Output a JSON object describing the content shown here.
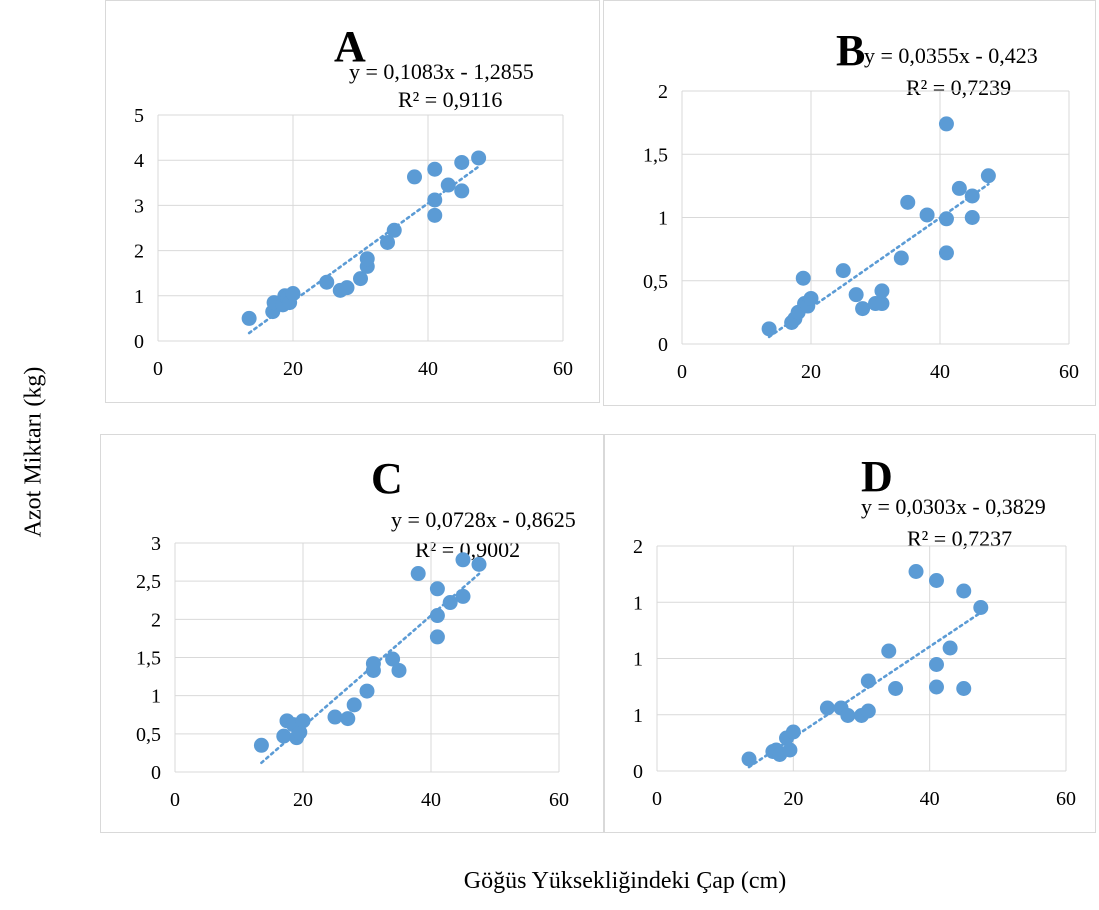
{
  "figure": {
    "ylabel": "Azot Miktarı (kg)",
    "xlabel": "Göğüs Yüksekliğindeki Çap (cm)"
  },
  "colors": {
    "point": "#5b9bd5",
    "trend": "#5b9bd5",
    "grid": "#d9d9d9"
  },
  "chart_data": [
    {
      "type": "scatter",
      "panel_label": "A",
      "equation": "y = 0,1083x - 1,2855",
      "r2": "R² = 0,9116",
      "xlim": [
        0,
        60
      ],
      "ylim": [
        0,
        5
      ],
      "x_ticks": [
        "0",
        "20",
        "40",
        "60"
      ],
      "y_ticks": [
        "0",
        "1",
        "2",
        "3",
        "4",
        "5"
      ],
      "trendline": {
        "slope": 0.1083,
        "intercept": -1.2855,
        "x_range": [
          13.5,
          47.5
        ]
      },
      "points": [
        [
          13.5,
          0.5
        ],
        [
          17,
          0.65
        ],
        [
          17.2,
          0.85
        ],
        [
          18.5,
          0.8
        ],
        [
          18.8,
          1.0
        ],
        [
          19.2,
          0.95
        ],
        [
          19.5,
          0.85
        ],
        [
          20,
          1.05
        ],
        [
          25,
          1.3
        ],
        [
          27,
          1.12
        ],
        [
          28,
          1.18
        ],
        [
          30,
          1.38
        ],
        [
          31,
          1.65
        ],
        [
          31,
          1.82
        ],
        [
          34,
          2.18
        ],
        [
          35,
          2.45
        ],
        [
          38,
          3.63
        ],
        [
          41,
          3.8
        ],
        [
          41,
          3.12
        ],
        [
          41,
          2.78
        ],
        [
          43,
          3.45
        ],
        [
          45,
          3.95
        ],
        [
          45,
          3.32
        ],
        [
          47.5,
          4.05
        ]
      ]
    },
    {
      "type": "scatter",
      "panel_label": "B",
      "equation": "y = 0,0355x - 0,423",
      "r2": "R² = 0,7239",
      "xlim": [
        0,
        60
      ],
      "ylim": [
        0,
        2
      ],
      "x_ticks": [
        "0",
        "20",
        "40",
        "60"
      ],
      "y_ticks": [
        "0",
        "0,5",
        "1",
        "1,5",
        "2"
      ],
      "trendline": {
        "slope": 0.0355,
        "intercept": -0.423,
        "x_range": [
          13.5,
          47.5
        ]
      },
      "points": [
        [
          13.5,
          0.12
        ],
        [
          17,
          0.17
        ],
        [
          17.5,
          0.2
        ],
        [
          18,
          0.25
        ],
        [
          18.8,
          0.52
        ],
        [
          19,
          0.32
        ],
        [
          19.5,
          0.3
        ],
        [
          20,
          0.36
        ],
        [
          25,
          0.58
        ],
        [
          27,
          0.39
        ],
        [
          28,
          0.28
        ],
        [
          30,
          0.32
        ],
        [
          31,
          0.32
        ],
        [
          31,
          0.42
        ],
        [
          34,
          0.68
        ],
        [
          35,
          1.12
        ],
        [
          38,
          1.02
        ],
        [
          41,
          1.74
        ],
        [
          41,
          0.99
        ],
        [
          41,
          0.72
        ],
        [
          43,
          1.23
        ],
        [
          45,
          1.17
        ],
        [
          45,
          1.0
        ],
        [
          47.5,
          1.33
        ]
      ]
    },
    {
      "type": "scatter",
      "panel_label": "C",
      "equation": "y = 0,0728x - 0,8625",
      "r2": "R² = 0,9002",
      "xlim": [
        0,
        60
      ],
      "ylim": [
        0,
        3
      ],
      "x_ticks": [
        "0",
        "20",
        "40",
        "60"
      ],
      "y_ticks": [
        "0",
        "0,5",
        "1",
        "1,5",
        "2",
        "2,5",
        "3"
      ],
      "trendline": {
        "slope": 0.0728,
        "intercept": -0.8625,
        "x_range": [
          13.5,
          47.5
        ]
      },
      "points": [
        [
          13.5,
          0.35
        ],
        [
          17,
          0.47
        ],
        [
          17.5,
          0.67
        ],
        [
          18.5,
          0.62
        ],
        [
          19,
          0.45
        ],
        [
          19.5,
          0.52
        ],
        [
          20,
          0.67
        ],
        [
          25,
          0.72
        ],
        [
          27,
          0.7
        ],
        [
          28,
          0.88
        ],
        [
          30,
          1.06
        ],
        [
          31,
          1.33
        ],
        [
          31,
          1.42
        ],
        [
          34,
          1.48
        ],
        [
          35,
          1.33
        ],
        [
          38,
          2.6
        ],
        [
          41,
          2.4
        ],
        [
          41,
          2.05
        ],
        [
          41,
          1.77
        ],
        [
          43,
          2.22
        ],
        [
          45,
          2.78
        ],
        [
          45,
          2.3
        ],
        [
          47.5,
          2.72
        ]
      ]
    },
    {
      "type": "scatter",
      "panel_label": "D",
      "equation": "y = 0,0303x - 0,3829",
      "r2": "R² = 0,7237",
      "xlim": [
        0,
        60
      ],
      "ylim": [
        0,
        1.5
      ],
      "x_ticks": [
        "0",
        "20",
        "40",
        "60"
      ],
      "y_ticks": [
        "0",
        "1",
        "1",
        "1",
        "2"
      ],
      "trendline": {
        "slope": 0.0303,
        "intercept": -0.3829,
        "x_range": [
          13.5,
          47.5
        ]
      },
      "points": [
        [
          13.5,
          0.08
        ],
        [
          17,
          0.13
        ],
        [
          17.5,
          0.14
        ],
        [
          18,
          0.11
        ],
        [
          19,
          0.22
        ],
        [
          19.5,
          0.14
        ],
        [
          20,
          0.26
        ],
        [
          25,
          0.42
        ],
        [
          27,
          0.42
        ],
        [
          28,
          0.37
        ],
        [
          30,
          0.37
        ],
        [
          31,
          0.4
        ],
        [
          31,
          0.6
        ],
        [
          34,
          0.8
        ],
        [
          35,
          0.55
        ],
        [
          38,
          1.33
        ],
        [
          41,
          1.27
        ],
        [
          41,
          0.71
        ],
        [
          41,
          0.56
        ],
        [
          43,
          0.82
        ],
        [
          45,
          1.2
        ],
        [
          45,
          0.55
        ],
        [
          47.5,
          1.09
        ]
      ]
    }
  ]
}
